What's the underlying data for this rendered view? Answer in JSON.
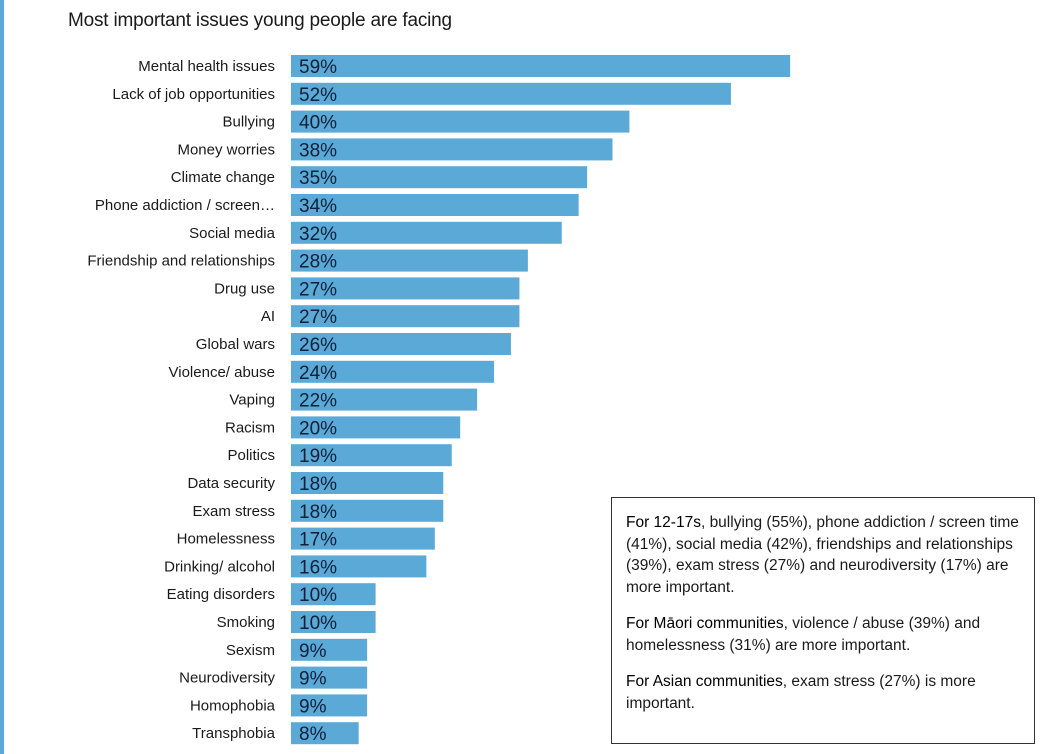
{
  "chart_data": {
    "type": "bar",
    "orientation": "horizontal",
    "title": "Most important issues young people are facing",
    "value_suffix": "%",
    "bar_color": "#5aa9d6",
    "categories": [
      "Mental health issues",
      "Lack of job opportunities",
      "Bullying",
      "Money worries",
      "Climate change",
      "Phone addiction / screen…",
      "Social media",
      "Friendship and relationships",
      "Drug use",
      "AI",
      "Global wars",
      "Violence/ abuse",
      "Vaping",
      "Racism",
      "Politics",
      "Data security",
      "Exam stress",
      "Homelessness",
      "Drinking/ alcohol",
      "Eating disorders",
      "Smoking",
      "Sexism",
      "Neurodiversity",
      "Homophobia",
      "Transphobia"
    ],
    "values": [
      59,
      52,
      40,
      38,
      35,
      34,
      32,
      28,
      27,
      27,
      26,
      24,
      22,
      20,
      19,
      18,
      18,
      17,
      16,
      10,
      10,
      9,
      9,
      9,
      8
    ]
  },
  "note_box": {
    "paragraphs": [
      {
        "lead": "For 12-17s",
        "text": ", bullying (55%), phone addiction / screen time (41%), social media (42%), friendships and relationships (39%), exam stress (27%) and neurodiversity (17%) are more important."
      },
      {
        "lead": "For Māori communities",
        "text": ", violence / abuse (39%) and homelessness (31%) are more important."
      },
      {
        "lead": "For Asian communities",
        "text": ", exam stress (27%) is more important."
      }
    ]
  }
}
